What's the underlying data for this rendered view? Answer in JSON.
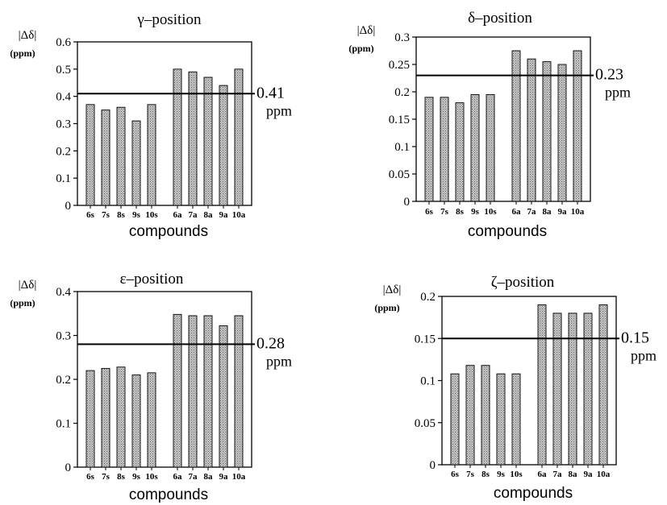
{
  "chart_data": [
    {
      "type": "bar",
      "title": "γ–position",
      "ylabel": "|Δδ|",
      "yunit": "(ppm)",
      "xlabel": "compounds",
      "ylim": [
        0,
        0.6
      ],
      "yticks": [
        "0",
        "0.1",
        "0.2",
        "0.3",
        "0.4",
        "0.5",
        "0.6"
      ],
      "categories": [
        "6s",
        "7s",
        "8s",
        "9s",
        "10s",
        "6a",
        "7a",
        "8a",
        "9a",
        "10a"
      ],
      "values": [
        0.37,
        0.35,
        0.36,
        0.31,
        0.37,
        0.5,
        0.49,
        0.47,
        0.44,
        0.5
      ],
      "reference": {
        "value": 0.41,
        "label": "0.41",
        "unit": "ppm"
      }
    },
    {
      "type": "bar",
      "title": "δ–position",
      "ylabel": "|Δδ|",
      "yunit": "(ppm)",
      "xlabel": "compounds",
      "ylim": [
        0,
        0.3
      ],
      "yticks": [
        "0",
        "0.05",
        "0.1",
        "0.15",
        "0.2",
        "0.25",
        "0.3"
      ],
      "categories": [
        "6s",
        "7s",
        "8s",
        "9s",
        "10s",
        "6a",
        "7a",
        "8a",
        "9a",
        "10a"
      ],
      "values": [
        0.19,
        0.19,
        0.18,
        0.195,
        0.195,
        0.275,
        0.26,
        0.255,
        0.25,
        0.275
      ],
      "reference": {
        "value": 0.23,
        "label": "0.23",
        "unit": "ppm"
      }
    },
    {
      "type": "bar",
      "title": "ε–position",
      "ylabel": "|Δδ|",
      "yunit": "(ppm)",
      "xlabel": "compounds",
      "ylim": [
        0,
        0.4
      ],
      "yticks": [
        "0",
        "0.1",
        "0.2",
        "0.3",
        "0.4"
      ],
      "categories": [
        "6s",
        "7s",
        "8s",
        "9s",
        "10s",
        "6a",
        "7a",
        "8a",
        "9a",
        "10a"
      ],
      "values": [
        0.22,
        0.225,
        0.228,
        0.21,
        0.215,
        0.348,
        0.345,
        0.345,
        0.322,
        0.345
      ],
      "reference": {
        "value": 0.28,
        "label": "0.28",
        "unit": "ppm"
      }
    },
    {
      "type": "bar",
      "title": "ζ–position",
      "ylabel": "|Δδ|",
      "yunit": "(ppm)",
      "xlabel": "compounds",
      "ylim": [
        0,
        0.2
      ],
      "yticks": [
        "0",
        "0.05",
        "0.1",
        "0.15",
        "0.2"
      ],
      "categories": [
        "6s",
        "7s",
        "8s",
        "9s",
        "10s",
        "6a",
        "7a",
        "8a",
        "9a",
        "10a"
      ],
      "values": [
        0.108,
        0.118,
        0.118,
        0.108,
        0.108,
        0.19,
        0.18,
        0.18,
        0.18,
        0.19
      ],
      "reference": {
        "value": 0.15,
        "label": "0.15",
        "unit": "ppm"
      }
    }
  ],
  "colors": {
    "bar_fill": "#c4c4c4",
    "bar_stroke": "#000000",
    "axis": "#000000"
  }
}
